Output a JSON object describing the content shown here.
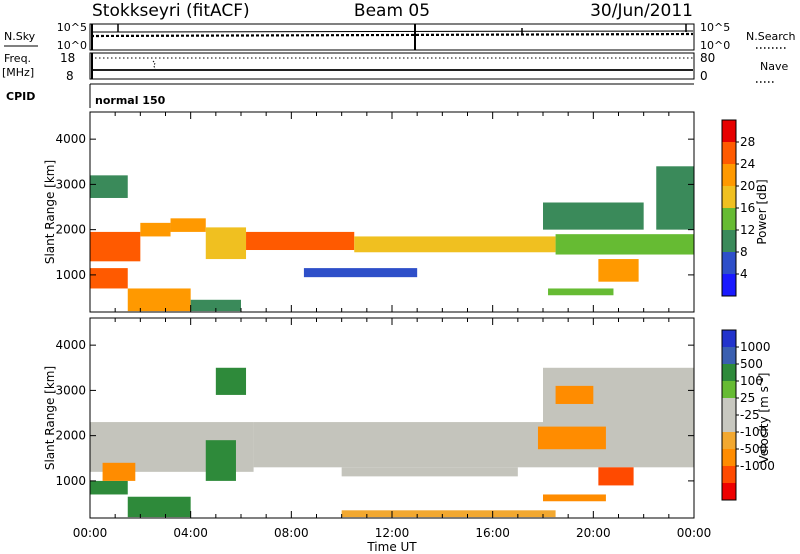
{
  "header": {
    "station": "Stokkseyri (fitACF)",
    "beam": "Beam 05",
    "date": "30/Jun/2011"
  },
  "param_panels": {
    "nsky": {
      "left_label": "N.Sky",
      "left_ticks": [
        "10^5",
        "10^0"
      ],
      "right_ticks": [
        "10^5",
        "10^0"
      ],
      "right_label": "N.Search"
    },
    "freq": {
      "left_label_top": "Freq.",
      "left_label_bottom": "[MHz]",
      "left_ticks": [
        "18",
        "8"
      ],
      "right_ticks": [
        "80",
        "0"
      ],
      "right_label": "Nave"
    },
    "cpid": {
      "label": "CPID",
      "mode": "normal 150"
    }
  },
  "x_axis": {
    "label": "Time UT",
    "ticks": [
      "00:00",
      "04:00",
      "08:00",
      "12:00",
      "16:00",
      "20:00",
      "00:00"
    ]
  },
  "colors": {
    "power_scale": [
      "#1a1aff",
      "#2e4fc9",
      "#3a8a5a",
      "#66bb33",
      "#f0c020",
      "#ff9900",
      "#ff5a00",
      "#e60000"
    ],
    "velocity_scale": [
      "#ee0000",
      "#ff4a00",
      "#ff8c00",
      "#f2a830",
      "#c8c8c0",
      "#c8c8c0",
      "#66bb33",
      "#2e8a3a",
      "#3a5fb0",
      "#2233cc"
    ],
    "velocity_gray": "#c4c4bc"
  },
  "chart_data": [
    {
      "type": "heatmap",
      "title": "",
      "xlabel": "Time UT",
      "ylabel": "Slant Range [km]",
      "xlim_hours": [
        0,
        24
      ],
      "ylim": [
        180,
        4600
      ],
      "yticks": [
        1000,
        2000,
        3000,
        4000
      ],
      "colorbar": {
        "label": "Power [dB]",
        "range": [
          0,
          32
        ],
        "ticks": [
          4,
          8,
          12,
          16,
          20,
          24,
          28
        ]
      },
      "regions": [
        {
          "t0": 0.0,
          "t1": 2.0,
          "r0": 1300,
          "r1": 1950,
          "value": 26
        },
        {
          "t0": 2.0,
          "t1": 3.2,
          "r0": 1850,
          "r1": 2150,
          "value": 22
        },
        {
          "t0": 3.2,
          "t1": 4.6,
          "r0": 1950,
          "r1": 2250,
          "value": 20
        },
        {
          "t0": 4.6,
          "t1": 6.2,
          "r0": 1350,
          "r1": 2050,
          "value": 16
        },
        {
          "t0": 6.2,
          "t1": 10.5,
          "r0": 1550,
          "r1": 1950,
          "value": 27
        },
        {
          "t0": 10.5,
          "t1": 18.5,
          "r0": 1500,
          "r1": 1850,
          "value": 18
        },
        {
          "t0": 18.5,
          "t1": 24.0,
          "r0": 1450,
          "r1": 1900,
          "value": 14
        },
        {
          "t0": 0.0,
          "t1": 1.5,
          "r0": 700,
          "r1": 1150,
          "value": 26
        },
        {
          "t0": 1.5,
          "t1": 4.0,
          "r0": 200,
          "r1": 700,
          "value": 23
        },
        {
          "t0": 4.0,
          "t1": 6.0,
          "r0": 200,
          "r1": 450,
          "value": 10
        },
        {
          "t0": 8.5,
          "t1": 13.0,
          "r0": 950,
          "r1": 1150,
          "value": 7
        },
        {
          "t0": 18.2,
          "t1": 20.8,
          "r0": 550,
          "r1": 700,
          "value": 13
        },
        {
          "t0": 20.2,
          "t1": 21.8,
          "r0": 850,
          "r1": 1350,
          "value": 22
        },
        {
          "t0": 22.5,
          "t1": 24.0,
          "r0": 2000,
          "r1": 3400,
          "value": 9
        },
        {
          "t0": 0.0,
          "t1": 1.5,
          "r0": 2700,
          "r1": 3200,
          "value": 8
        },
        {
          "t0": 18.0,
          "t1": 22.0,
          "r0": 2000,
          "r1": 2600,
          "value": 8
        }
      ]
    },
    {
      "type": "heatmap",
      "title": "",
      "xlabel": "Time UT",
      "ylabel": "Slant Range [km]",
      "xlim_hours": [
        0,
        24
      ],
      "ylim": [
        180,
        4600
      ],
      "yticks": [
        1000,
        2000,
        3000,
        4000
      ],
      "colorbar": {
        "label": "Velocity [m s^-1]",
        "ticks": [
          "1000",
          "500",
          "100",
          "25",
          "-25",
          "-100",
          "-500",
          "-1000"
        ]
      },
      "regions": [
        {
          "t0": 0.0,
          "t1": 6.5,
          "r0": 1200,
          "r1": 2300,
          "value": 0
        },
        {
          "t0": 6.5,
          "t1": 24.0,
          "r0": 1300,
          "r1": 2300,
          "value": 0
        },
        {
          "t0": 10.0,
          "t1": 17.0,
          "r0": 1100,
          "r1": 1300,
          "value": 0
        },
        {
          "t0": 18.0,
          "t1": 24.0,
          "r0": 2200,
          "r1": 3500,
          "value": 0
        },
        {
          "t0": 0.0,
          "t1": 1.5,
          "r0": 700,
          "r1": 1000,
          "value": 150
        },
        {
          "t0": 0.5,
          "t1": 1.8,
          "r0": 1000,
          "r1": 1400,
          "value": -300
        },
        {
          "t0": 1.5,
          "t1": 4.0,
          "r0": 200,
          "r1": 650,
          "value": 120
        },
        {
          "t0": 4.6,
          "t1": 5.8,
          "r0": 1000,
          "r1": 1900,
          "value": 300
        },
        {
          "t0": 5.0,
          "t1": 6.2,
          "r0": 2900,
          "r1": 3500,
          "value": 150
        },
        {
          "t0": 17.8,
          "t1": 20.5,
          "r0": 1700,
          "r1": 2200,
          "value": -200
        },
        {
          "t0": 20.2,
          "t1": 21.6,
          "r0": 900,
          "r1": 1300,
          "value": -700
        },
        {
          "t0": 18.5,
          "t1": 20.0,
          "r0": 2700,
          "r1": 3100,
          "value": -200
        },
        {
          "t0": 18.0,
          "t1": 20.5,
          "r0": 550,
          "r1": 700,
          "value": -150
        },
        {
          "t0": 10.0,
          "t1": 18.5,
          "r0": 200,
          "r1": 350,
          "value": -80
        }
      ]
    }
  ]
}
